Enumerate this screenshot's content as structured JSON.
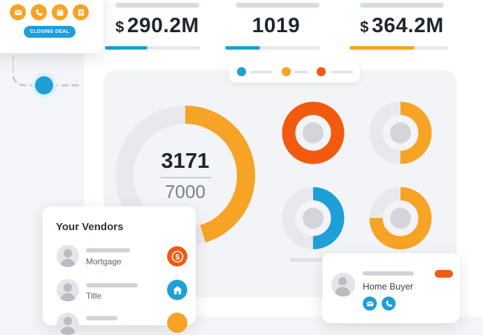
{
  "colors": {
    "orange": "#f7a325",
    "red_orange": "#f35a10",
    "blue": "#1e9fd7",
    "track": "#e8e9ec",
    "hole": "#d3d5d9"
  },
  "stats": [
    {
      "currency": "$",
      "value": "290.2M",
      "progress": 0.45,
      "color": "#1e9fd7"
    },
    {
      "currency": "",
      "value": "1019",
      "progress": 0.37,
      "color": "#1e9fd7"
    },
    {
      "currency": "$",
      "value": "364.2M",
      "progress": 0.66,
      "color": "#f7a325"
    }
  ],
  "legend": {
    "colors": [
      "#1e9fd7",
      "#f7a325",
      "#f35a10"
    ]
  },
  "big_donut": {
    "value": "3171",
    "total": "7000",
    "fraction": 0.453,
    "color": "#f7a325"
  },
  "mini_donuts": [
    {
      "fraction": 1.0,
      "color": "#f35a10"
    },
    {
      "fraction": 0.5,
      "color": "#f7a325"
    },
    {
      "fraction": 0.5,
      "color": "#1e9fd7"
    },
    {
      "fraction": 0.75,
      "color": "#f7a325"
    }
  ],
  "closing_card": {
    "icons": [
      "mail-icon",
      "phone-icon",
      "calendar-icon",
      "document-icon"
    ],
    "pill_label": "CLOSING DEAL"
  },
  "vendors": {
    "title": "Your Vendors",
    "items": [
      {
        "label": "Mortgage",
        "icon": "dollar-icon",
        "color": "#f35a10"
      },
      {
        "label": "Title",
        "icon": "home-icon",
        "color": "#1e9fd7"
      },
      {
        "label": "",
        "icon": "badge-icon",
        "color": "#f7a325"
      }
    ]
  },
  "buyer": {
    "name": "Home Buyer",
    "badge_color": "#f35a10",
    "actions": [
      "mail-icon",
      "phone-icon"
    ]
  }
}
